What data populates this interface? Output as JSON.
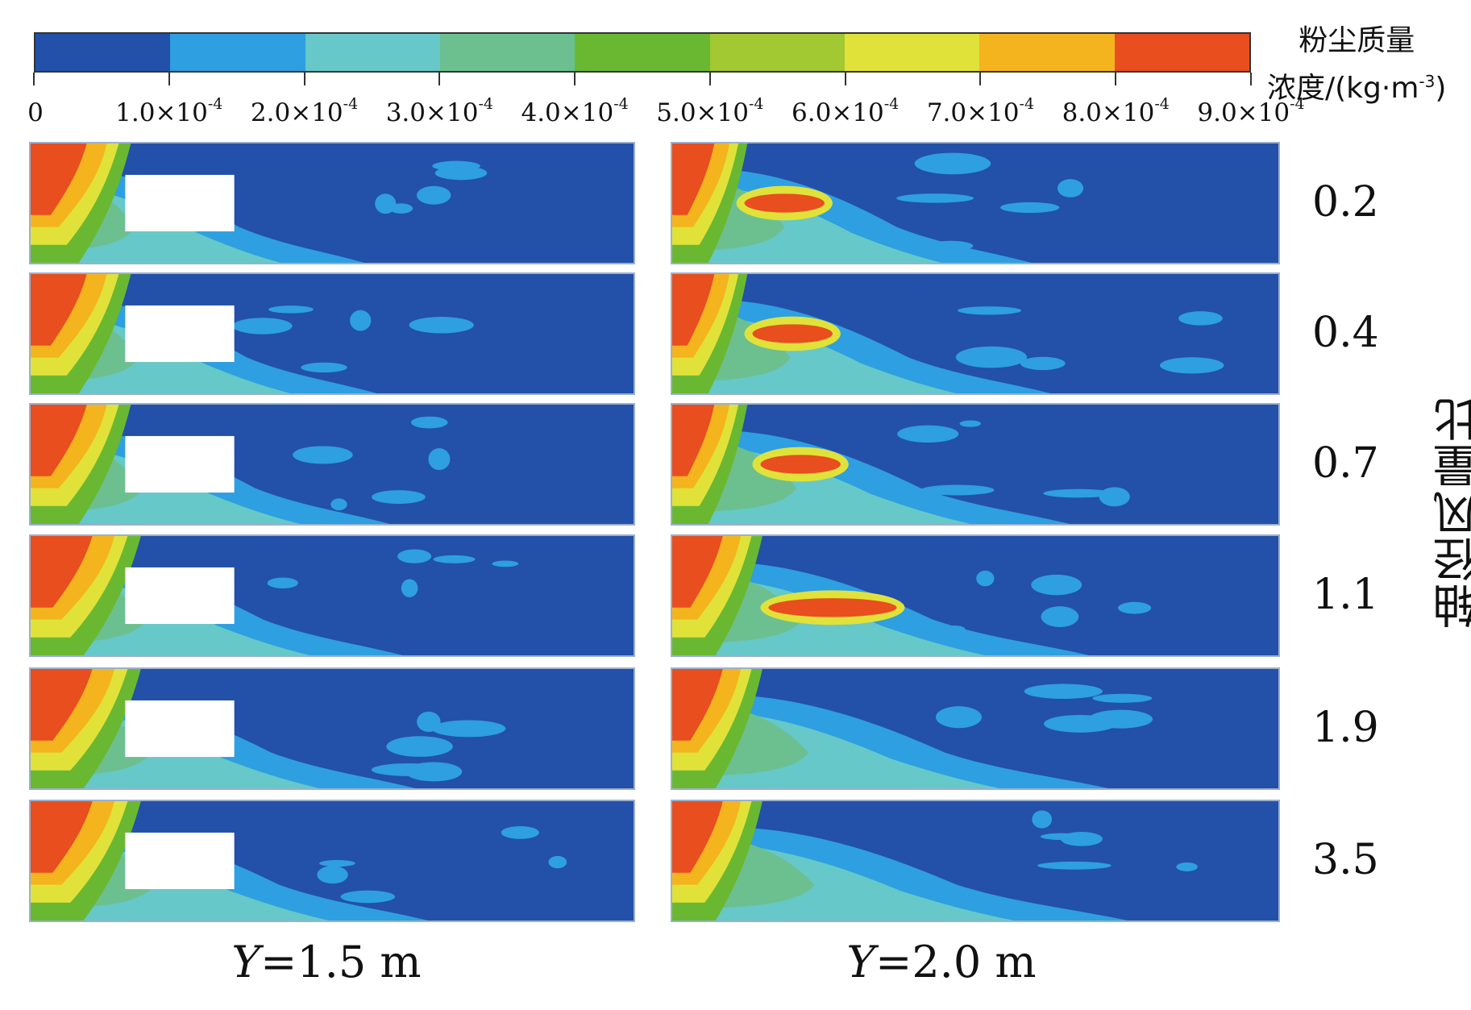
{
  "colorbar": {
    "title_line1": "粉尘质量",
    "title_line2": "浓度/(kg·m",
    "title_exp": "-3",
    "title_close": ")",
    "colors": [
      "#2350a8",
      "#2e9fe0",
      "#66c8c8",
      "#6cc090",
      "#6ab832",
      "#a2c832",
      "#e0e23a",
      "#f4b41e",
      "#e84e1e",
      "#e83a1a"
    ],
    "labels": [
      {
        "mant": "0",
        "exp": ""
      },
      {
        "mant": "1.0×10",
        "exp": "-4"
      },
      {
        "mant": "2.0×10",
        "exp": "-4"
      },
      {
        "mant": "3.0×10",
        "exp": "-4"
      },
      {
        "mant": "4.0×10",
        "exp": "-4"
      },
      {
        "mant": "5.0×10",
        "exp": "-4"
      },
      {
        "mant": "6.0×10",
        "exp": "-4"
      },
      {
        "mant": "7.0×10",
        "exp": "-4"
      },
      {
        "mant": "8.0×10",
        "exp": "-4"
      },
      {
        "mant": "9.0×10",
        "exp": "-4"
      }
    ]
  },
  "rows": [
    "0.2",
    "0.4",
    "0.7",
    "1.1",
    "1.9",
    "3.5"
  ],
  "axis_title": "轴径风量比",
  "columns": [
    {
      "var": "Y",
      "value": "=1.5 m"
    },
    {
      "var": "Y",
      "value": "=2.0 m"
    }
  ]
}
